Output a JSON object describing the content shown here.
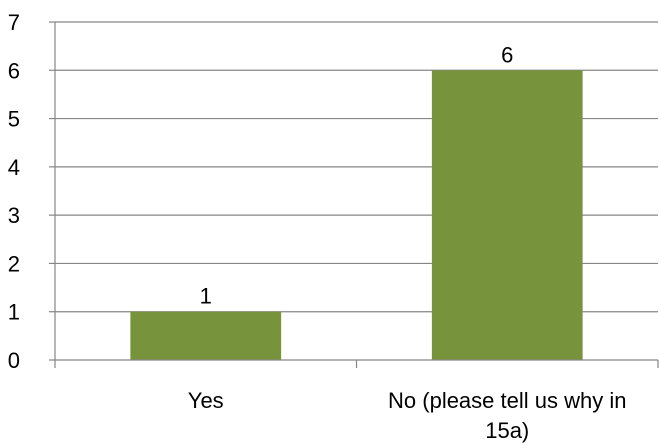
{
  "chart_data": {
    "type": "bar",
    "categories": [
      "Yes",
      "No (please tell us why in 15a)"
    ],
    "category_label_lines": [
      [
        "Yes"
      ],
      [
        "No (please tell us why in",
        "15a)"
      ]
    ],
    "values": [
      1,
      6
    ],
    "data_labels": [
      "1",
      "6"
    ],
    "ylim": [
      0,
      7
    ],
    "y_ticks": [
      0,
      1,
      2,
      3,
      4,
      5,
      6,
      7
    ],
    "title": "",
    "xlabel": "",
    "ylabel": "",
    "grid": true,
    "legend": "none",
    "colors": {
      "bar": "#77933C",
      "grid": "#868686",
      "axis": "#868686",
      "text": "#000000"
    }
  }
}
